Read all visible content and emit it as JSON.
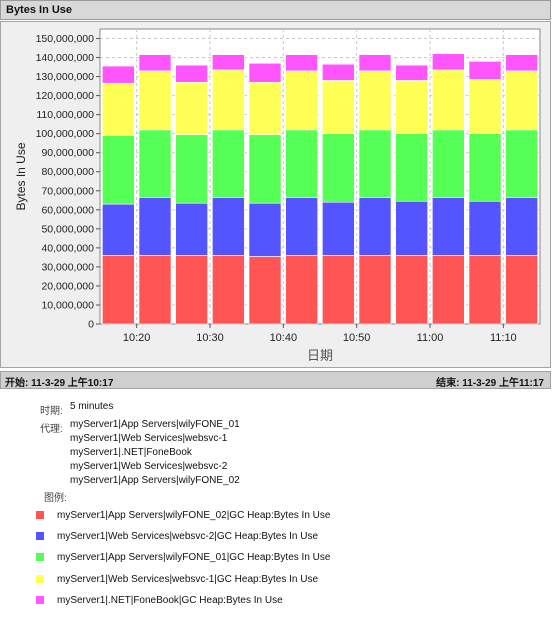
{
  "title": "Bytes In Use",
  "range": {
    "start": "开始: 11-3-29 上午10:17",
    "end": "结束: 11-3-29 上午11:17"
  },
  "info": {
    "period_label": "时期:",
    "period_value": "5 minutes",
    "agents_label": "代理:",
    "agents": [
      "myServer1|App Servers|wilyFONE_01",
      "myServer1|Web Services|websvc-1",
      "myServer1|.NET|FoneBook",
      "myServer1|Web Services|websvc-2",
      "myServer1|App Servers|wilyFONE_02"
    ],
    "legend_label": "图例:"
  },
  "chart_data": {
    "type": "bar",
    "stacked": true,
    "xlabel": "日期",
    "ylabel": "Bytes In Use",
    "ylim": [
      0,
      155000000
    ],
    "yticks": [
      0,
      10000000,
      20000000,
      30000000,
      40000000,
      50000000,
      60000000,
      70000000,
      80000000,
      90000000,
      100000000,
      110000000,
      120000000,
      130000000,
      140000000,
      150000000
    ],
    "ytick_labels": [
      "0",
      "10,000,000",
      "20,000,000",
      "30,000,000",
      "40,000,000",
      "50,000,000",
      "60,000,000",
      "70,000,000",
      "80,000,000",
      "90,000,000",
      "100,000,000",
      "110,000,000",
      "120,000,000",
      "130,000,000",
      "140,000,000",
      "150,000,000"
    ],
    "categories": [
      "10:17",
      "10:22",
      "10:27",
      "10:32",
      "10:37",
      "10:42",
      "10:47",
      "10:52",
      "10:57",
      "11:02",
      "11:07",
      "11:12"
    ],
    "x_tick_labels": [
      {
        "label": "10:20",
        "between": [
          0,
          1
        ]
      },
      {
        "label": "10:30",
        "between": [
          2,
          3
        ]
      },
      {
        "label": "10:40",
        "between": [
          4,
          5
        ]
      },
      {
        "label": "10:50",
        "between": [
          6,
          7
        ]
      },
      {
        "label": "11:00",
        "between": [
          8,
          9
        ]
      },
      {
        "label": "11:10",
        "between": [
          10,
          11
        ]
      }
    ],
    "grid": true,
    "series": [
      {
        "name": "myServer1|App Servers|wilyFONE_02|GC Heap:Bytes In Use",
        "color": "#ff5555",
        "values": [
          36000000,
          36000000,
          36000000,
          36000000,
          35500000,
          36000000,
          36000000,
          36000000,
          36000000,
          36000000,
          36000000,
          36000000
        ]
      },
      {
        "name": "myServer1|Web Services|websvc-2|GC Heap:Bytes In Use",
        "color": "#5555ff",
        "values": [
          27000000,
          30500000,
          27500000,
          30500000,
          28000000,
          30500000,
          28000000,
          30500000,
          28500000,
          30500000,
          28500000,
          30500000
        ]
      },
      {
        "name": "myServer1|App Servers|wilyFONE_01|GC Heap:Bytes In Use",
        "color": "#55ff55",
        "values": [
          36000000,
          35500000,
          36000000,
          35500000,
          36000000,
          35500000,
          36000000,
          35500000,
          35500000,
          35500000,
          35500000,
          35500000
        ]
      },
      {
        "name": "myServer1|Web Services|websvc-1|GC Heap:Bytes In Use",
        "color": "#ffff55",
        "values": [
          27500000,
          31000000,
          27500000,
          31500000,
          27500000,
          31000000,
          28000000,
          31000000,
          28000000,
          31500000,
          28500000,
          31000000
        ]
      },
      {
        "name": "myServer1|.NET|FoneBook|GC Heap:Bytes In Use",
        "color": "#ff55ff",
        "values": [
          9000000,
          8500000,
          9000000,
          8000000,
          10000000,
          8500000,
          8500000,
          8500000,
          8000000,
          8500000,
          9500000,
          8500000
        ]
      }
    ]
  }
}
